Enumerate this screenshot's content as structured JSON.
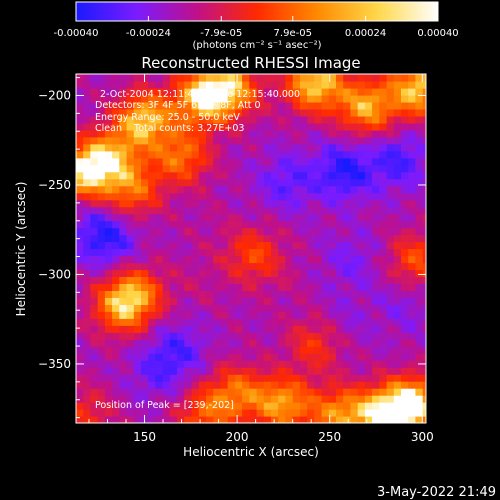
{
  "chart_data": {
    "type": "heatmap",
    "title": "Reconstructed RHESSI Image",
    "xlabel": "Heliocentric X (arcsec)",
    "ylabel": "Heliocentric Y (arcsec)",
    "xlim": [
      113,
      302
    ],
    "ylim": [
      -383,
      -188
    ],
    "xticks": [
      150,
      200,
      250,
      300
    ],
    "yticks": [
      -200,
      -250,
      -300,
      -350
    ],
    "colorbar": {
      "range": [
        -0.0004,
        0.0004
      ],
      "ticks": [
        "-0.00040",
        "-0.00024",
        "-7.9e-05",
        "7.9e-05",
        "0.00024",
        "0.00040"
      ],
      "tick_values": [
        -0.0004,
        -0.00024,
        -7.9e-05,
        7.9e-05,
        0.00024,
        0.0004
      ],
      "unit_label": "(photons cm⁻² s⁻¹ asec⁻²)",
      "colors": [
        "#1a1aff",
        "#7a1cff",
        "#c0108a",
        "#ff2a00",
        "#ff8a00",
        "#ffd84a",
        "#ffffff"
      ]
    },
    "info_lines": [
      "2-Oct-2004 12:11:40.000 to 12:15:40.000",
      "Detectors: 3F 4F 5F 6F 7F 8F, Att 0",
      "Energy Range: 25.0 - 50.0 keV",
      "Clean    Total counts: 3.27E+03"
    ],
    "peak_label": "Position of Peak = [239,-202]",
    "peak": [
      239,
      -202
    ],
    "hotspots": [
      {
        "x": 118,
        "y": -242,
        "value": 0.0004
      },
      {
        "x": 150,
        "y": -213,
        "value": 0.00036
      },
      {
        "x": 181,
        "y": -201,
        "value": 0.00036
      },
      {
        "x": 197,
        "y": -196,
        "value": 0.0003
      },
      {
        "x": 242,
        "y": -193,
        "value": 0.0004
      },
      {
        "x": 270,
        "y": -206,
        "value": 0.00032
      },
      {
        "x": 298,
        "y": -196,
        "value": 0.00038
      },
      {
        "x": 170,
        "y": -234,
        "value": 0.00022
      },
      {
        "x": 133,
        "y": -233,
        "value": 0.0002
      },
      {
        "x": 137,
        "y": -318,
        "value": 0.00024
      },
      {
        "x": 146,
        "y": -310,
        "value": 0.00018
      },
      {
        "x": 209,
        "y": -289,
        "value": 0.00014
      },
      {
        "x": 255,
        "y": -378,
        "value": 0.00026
      },
      {
        "x": 279,
        "y": -378,
        "value": 0.00038
      },
      {
        "x": 296,
        "y": -372,
        "value": 0.0004
      },
      {
        "x": 225,
        "y": -372,
        "value": 0.0003
      },
      {
        "x": 182,
        "y": -378,
        "value": 0.00016
      },
      {
        "x": 200,
        "y": -366,
        "value": 0.0002
      },
      {
        "x": 143,
        "y": -253,
        "value": 0.0002
      },
      {
        "x": 297,
        "y": -292,
        "value": 0.00016
      },
      {
        "x": 243,
        "y": -338,
        "value": 0.00012
      },
      {
        "x": 118,
        "y": -378,
        "value": 8e-05
      }
    ],
    "coldspots": [
      {
        "x": 258,
        "y": -242,
        "value": -0.0004
      },
      {
        "x": 287,
        "y": -236,
        "value": -0.00034
      },
      {
        "x": 227,
        "y": -248,
        "value": -0.0003
      },
      {
        "x": 131,
        "y": -282,
        "value": -0.0003
      },
      {
        "x": 125,
        "y": -274,
        "value": -0.00028
      },
      {
        "x": 168,
        "y": -342,
        "value": -0.0003
      },
      {
        "x": 157,
        "y": -355,
        "value": -0.00026
      },
      {
        "x": 262,
        "y": -292,
        "value": -0.00024
      },
      {
        "x": 255,
        "y": -328,
        "value": -0.00022
      },
      {
        "x": 291,
        "y": -316,
        "value": -0.00022
      },
      {
        "x": 197,
        "y": -329,
        "value": -0.00012
      },
      {
        "x": 185,
        "y": -271,
        "value": -0.0001
      },
      {
        "x": 226,
        "y": -305,
        "value": -0.0001
      },
      {
        "x": 180,
        "y": -303,
        "value": -8e-05
      }
    ],
    "base_value": -0.00013
  },
  "footer": {
    "date": "3-May-2022 21:49"
  }
}
